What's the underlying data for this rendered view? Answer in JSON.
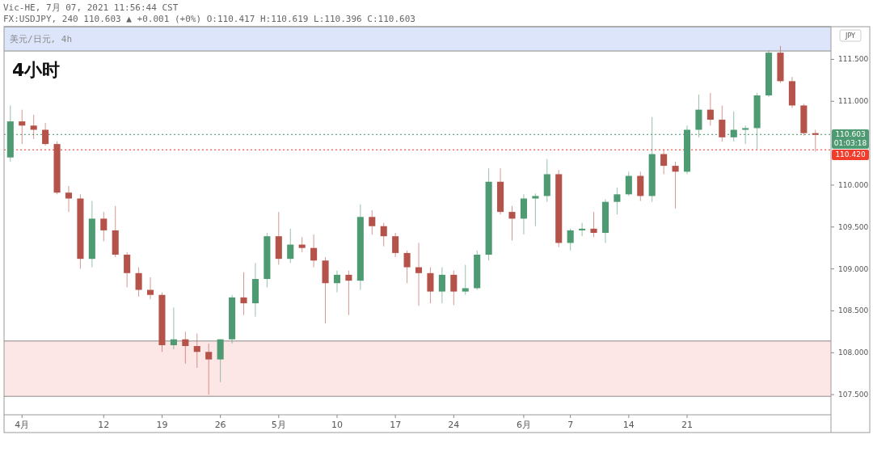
{
  "chart_data": {
    "type": "candlestick",
    "title": "4小时",
    "subtitle": "美元/日元, 4h",
    "ylabel": "JPY",
    "annotations": [
      "Vic-HE, 7月 07, 2021 11:56:44 CST",
      "FX:USDJPY, 240 110.603 ▲ +0.001 (+0%) O:110.417 H:110.619 L:110.396 C:110.603"
    ],
    "categories": [
      null,
      "4月",
      null,
      null,
      null,
      null,
      null,
      null,
      "12",
      null,
      null,
      null,
      null,
      "19",
      null,
      null,
      null,
      null,
      "26",
      null,
      null,
      null,
      null,
      "5月",
      null,
      null,
      null,
      null,
      "10",
      null,
      null,
      null,
      null,
      "17",
      null,
      null,
      null,
      null,
      "24",
      null,
      null,
      null,
      null,
      null,
      "6月",
      null,
      null,
      null,
      "7",
      null,
      null,
      null,
      null,
      "14",
      null,
      null,
      null,
      null,
      "21",
      null,
      null,
      null,
      null,
      null,
      null,
      null,
      null,
      null,
      null,
      null
    ],
    "ohlc": [
      [
        110.33,
        110.95,
        110.28,
        110.76
      ],
      [
        110.76,
        110.9,
        110.49,
        110.71
      ],
      [
        110.71,
        110.84,
        110.55,
        110.66
      ],
      [
        110.66,
        110.74,
        110.47,
        110.49
      ],
      [
        110.49,
        110.52,
        109.89,
        109.91
      ],
      [
        109.91,
        109.99,
        109.68,
        109.84
      ],
      [
        109.84,
        109.89,
        109.0,
        109.12
      ],
      [
        109.12,
        109.81,
        109.02,
        109.6
      ],
      [
        109.6,
        109.68,
        109.33,
        109.46
      ],
      [
        109.46,
        109.75,
        109.14,
        109.17
      ],
      [
        109.17,
        109.2,
        108.78,
        108.95
      ],
      [
        108.95,
        109.02,
        108.67,
        108.75
      ],
      [
        108.75,
        108.9,
        108.64,
        108.69
      ],
      [
        108.69,
        108.72,
        108.01,
        108.09
      ],
      [
        108.09,
        108.54,
        108.04,
        108.16
      ],
      [
        108.16,
        108.25,
        107.87,
        108.08
      ],
      [
        108.08,
        108.23,
        107.82,
        108.01
      ],
      [
        108.01,
        108.11,
        107.5,
        107.92
      ],
      [
        107.92,
        108.16,
        107.65,
        108.16
      ],
      [
        108.16,
        108.69,
        108.11,
        108.66
      ],
      [
        108.66,
        108.96,
        108.45,
        108.59
      ],
      [
        108.59,
        109.07,
        108.43,
        108.88
      ],
      [
        108.88,
        109.43,
        108.78,
        109.39
      ],
      [
        109.39,
        109.68,
        109.05,
        109.12
      ],
      [
        109.12,
        109.48,
        109.07,
        109.29
      ],
      [
        109.29,
        109.38,
        109.2,
        109.25
      ],
      [
        109.25,
        109.41,
        109.02,
        109.1
      ],
      [
        109.1,
        109.14,
        108.35,
        108.83
      ],
      [
        108.83,
        108.98,
        108.72,
        108.93
      ],
      [
        108.93,
        108.98,
        108.45,
        108.86
      ],
      [
        108.86,
        109.77,
        108.75,
        109.62
      ],
      [
        109.62,
        109.7,
        109.41,
        109.51
      ],
      [
        109.51,
        109.55,
        109.27,
        109.39
      ],
      [
        109.39,
        109.43,
        109.14,
        109.19
      ],
      [
        109.19,
        109.22,
        108.83,
        109.02
      ],
      [
        109.02,
        109.31,
        108.56,
        108.95
      ],
      [
        108.95,
        109.02,
        108.59,
        108.73
      ],
      [
        108.73,
        109.02,
        108.59,
        108.93
      ],
      [
        108.93,
        108.98,
        108.57,
        108.73
      ],
      [
        108.73,
        109.05,
        108.69,
        108.77
      ],
      [
        108.77,
        109.22,
        108.75,
        109.17
      ],
      [
        109.17,
        110.2,
        109.1,
        110.04
      ],
      [
        110.04,
        110.2,
        109.65,
        109.68
      ],
      [
        109.68,
        109.75,
        109.34,
        109.6
      ],
      [
        109.6,
        109.89,
        109.41,
        109.84
      ],
      [
        109.84,
        109.9,
        109.51,
        109.87
      ],
      [
        109.87,
        110.31,
        109.8,
        110.13
      ],
      [
        110.13,
        110.18,
        109.26,
        109.31
      ],
      [
        109.31,
        109.48,
        109.22,
        109.46
      ],
      [
        109.46,
        109.55,
        109.39,
        109.48
      ],
      [
        109.48,
        109.68,
        109.38,
        109.43
      ],
      [
        109.43,
        109.83,
        109.31,
        109.8
      ],
      [
        109.8,
        109.97,
        109.65,
        109.89
      ],
      [
        109.89,
        110.16,
        109.87,
        110.11
      ],
      [
        110.11,
        110.16,
        109.81,
        109.87
      ],
      [
        109.87,
        110.81,
        109.8,
        110.37
      ],
      [
        110.37,
        110.42,
        110.13,
        110.23
      ],
      [
        110.23,
        110.28,
        109.72,
        110.16
      ],
      [
        110.16,
        110.71,
        110.13,
        110.66
      ],
      [
        110.66,
        111.08,
        110.57,
        110.9
      ],
      [
        110.9,
        111.1,
        110.71,
        110.78
      ],
      [
        110.78,
        110.95,
        110.52,
        110.57
      ],
      [
        110.57,
        110.88,
        110.52,
        110.66
      ],
      [
        110.66,
        110.71,
        110.49,
        110.68
      ],
      [
        110.68,
        111.1,
        110.43,
        111.07
      ],
      [
        111.07,
        111.61,
        111.05,
        111.58
      ],
      [
        111.58,
        111.66,
        111.22,
        111.24
      ],
      [
        111.24,
        111.29,
        110.92,
        110.95
      ],
      [
        110.95,
        110.97,
        110.59,
        110.62
      ],
      [
        110.62,
        110.66,
        110.4,
        110.6
      ]
    ],
    "colors": [
      "#4e9a72",
      "#b5534b",
      "#b5534b",
      "#b5534b",
      "#b5534b",
      "#b5534b",
      "#b5534b",
      "#4e9a72",
      "#b5534b",
      "#b5534b",
      "#b5534b",
      "#b5534b",
      "#b5534b",
      "#b5534b",
      "#4e9a72",
      "#b5534b",
      "#b5534b",
      "#b5534b",
      "#4e9a72",
      "#4e9a72",
      "#b5534b",
      "#4e9a72",
      "#4e9a72",
      "#b5534b",
      "#4e9a72",
      "#b5534b",
      "#b5534b",
      "#b5534b",
      "#4e9a72",
      "#b5534b",
      "#4e9a72",
      "#b5534b",
      "#b5534b",
      "#b5534b",
      "#b5534b",
      "#b5534b",
      "#b5534b",
      "#4e9a72",
      "#b5534b",
      "#4e9a72",
      "#4e9a72",
      "#4e9a72",
      "#b5534b",
      "#b5534b",
      "#4e9a72",
      "#4e9a72",
      "#4e9a72",
      "#b5534b",
      "#4e9a72",
      "#4e9a72",
      "#b5534b",
      "#4e9a72",
      "#4e9a72",
      "#4e9a72",
      "#b5534b",
      "#4e9a72",
      "#b5534b",
      "#b5534b",
      "#4e9a72",
      "#4e9a72",
      "#b5534b",
      "#b5534b",
      "#4e9a72",
      "#4e9a72",
      "#4e9a72",
      "#4e9a72",
      "#b5534b",
      "#b5534b",
      "#b5534b",
      "#b5534b"
    ],
    "ylim": [
      107.26,
      111.89
    ],
    "yticks": [
      {
        "value": 107.5,
        "label": "107.500"
      },
      {
        "value": 108,
        "label": "108.000"
      },
      {
        "value": 108.5,
        "label": "108.500"
      },
      {
        "value": 109,
        "label": "109.000"
      },
      {
        "value": 109.5,
        "label": "109.500"
      },
      {
        "value": 110,
        "label": "110.000"
      },
      {
        "value": 111,
        "label": "111.000"
      },
      {
        "value": 111.5,
        "label": "111.500"
      }
    ],
    "bands": [
      {
        "axis": "y",
        "from": 111.6,
        "to": 111.89,
        "color": "#dde5fb"
      },
      {
        "axis": "y",
        "from": 107.48,
        "to": 108.14,
        "color": "#fde6e6"
      }
    ],
    "ref_lines": [
      {
        "axis": "y",
        "value": 110.603,
        "label": "110.603\n01:03:18",
        "color": "#4e9a72",
        "line_style": "dotted"
      },
      {
        "axis": "y",
        "value": 110.42,
        "label": "110.420",
        "color": "#f23c2c",
        "line_style": "dotted"
      }
    ]
  }
}
